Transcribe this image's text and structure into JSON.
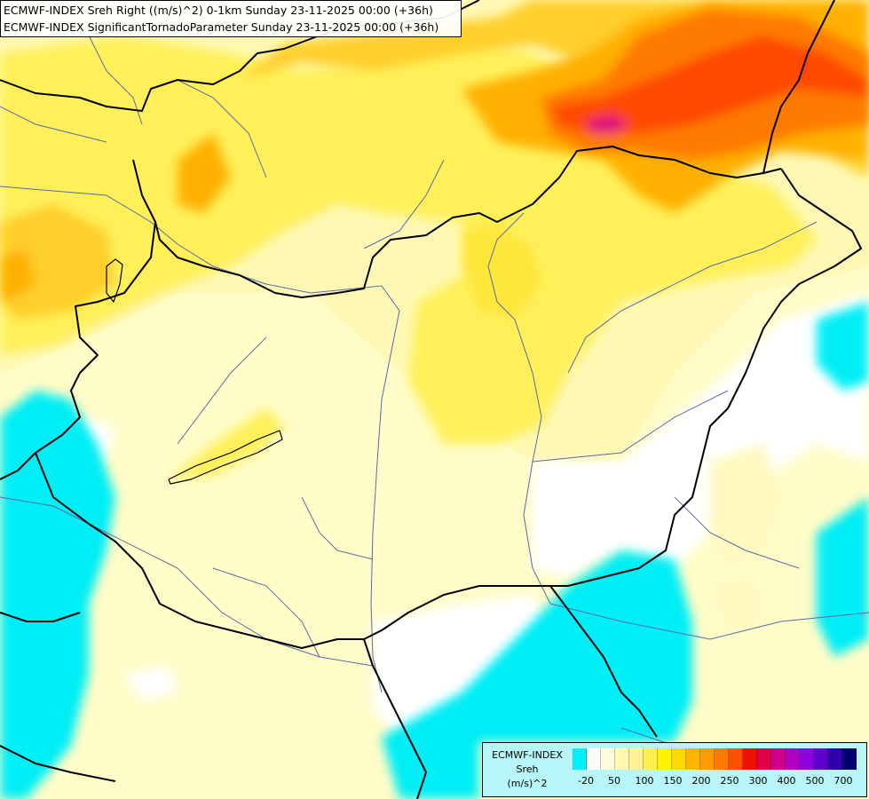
{
  "header": {
    "line1": "ECMWF-INDEX Sreh Right ((m/s)^2) 0-1km Sunday 23-11-2025 00:00 (+36h)",
    "line2": "ECMWF-INDEX SignificantTornadoParameter Sunday 23-11-2025 00:00 (+36h)"
  },
  "legend": {
    "title1": "ECMWF-INDEX",
    "title2": "Sreh",
    "title3": "(m/s)^2",
    "colors": [
      "#00f0f8",
      "#ffffff",
      "#fffde0",
      "#fff8b0",
      "#fff290",
      "#ffee50",
      "#fff400",
      "#ffd800",
      "#ffb400",
      "#ff9c00",
      "#ff7800",
      "#ff5000",
      "#f01000",
      "#e0004a",
      "#d0008c",
      "#b000c0",
      "#9000e0",
      "#6000d0",
      "#3000b0",
      "#000070"
    ],
    "ticks": [
      "-20",
      "50",
      "100",
      "150",
      "200",
      "250",
      "300",
      "400",
      "500",
      "700"
    ]
  },
  "map": {
    "region": "Hungary / Carpathian Basin",
    "fill_colors": {
      "background": "#fffccc",
      "pale": "#fffbbd",
      "yellow": "#fff44a",
      "orange": "#ffb000",
      "deep_orange": "#ff7a00",
      "red": "#ff3a00",
      "magenta": "#e0007a",
      "cyan": "#00eef6",
      "white": "#ffffff",
      "border": "#000000",
      "river": "#5a6aa8"
    }
  }
}
